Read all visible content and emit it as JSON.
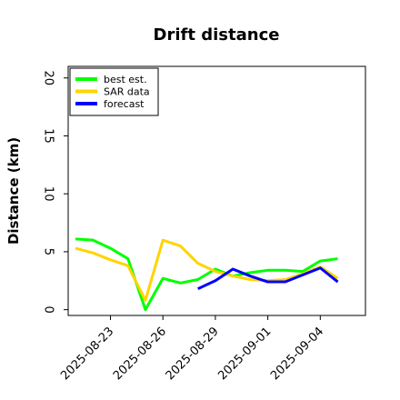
{
  "chart_data": {
    "type": "line",
    "title": "Drift distance",
    "ylabel": "Distance (km)",
    "xlabel": "",
    "xlim": [
      "2025-08-20T14:00",
      "2025-09-06T14:00"
    ],
    "ylim": [
      -0.5,
      21
    ],
    "yticks": [
      0,
      5,
      10,
      15,
      20
    ],
    "xticks": [
      "2025-08-23",
      "2025-08-26",
      "2025-08-29",
      "2025-09-01",
      "2025-09-04"
    ],
    "grid": false,
    "legend_position": "top-left",
    "series": [
      {
        "name": "best est.",
        "color": "#00ff00",
        "x": [
          "2025-08-21",
          "2025-08-22",
          "2025-08-23",
          "2025-08-24",
          "2025-08-25",
          "2025-08-26",
          "2025-08-27",
          "2025-08-28",
          "2025-08-29",
          "2025-08-30",
          "2025-08-31",
          "2025-09-01",
          "2025-09-02",
          "2025-09-03",
          "2025-09-04",
          "2025-09-05"
        ],
        "values": [
          6.1,
          6.0,
          5.3,
          4.4,
          0.0,
          2.7,
          2.3,
          2.6,
          3.5,
          2.9,
          3.2,
          3.4,
          3.4,
          3.3,
          4.2,
          4.4
        ]
      },
      {
        "name": "SAR data",
        "color": "#ffd400",
        "x": [
          "2025-08-21",
          "2025-08-22",
          "2025-08-23",
          "2025-08-24",
          "2025-08-25",
          "2025-08-26",
          "2025-08-27",
          "2025-08-28",
          "2025-08-29",
          "2025-08-30",
          "2025-08-31",
          "2025-09-01",
          "2025-09-02",
          "2025-09-03",
          "2025-09-04",
          "2025-09-05"
        ],
        "values": [
          5.3,
          4.9,
          4.3,
          3.8,
          0.8,
          6.0,
          5.5,
          4.0,
          3.3,
          2.9,
          2.6,
          2.5,
          2.6,
          3.1,
          3.7,
          2.7
        ]
      },
      {
        "name": "forecast",
        "color": "#0000ff",
        "x": [
          "2025-08-28",
          "2025-08-29",
          "2025-08-30",
          "2025-08-31",
          "2025-09-01",
          "2025-09-02",
          "2025-09-03",
          "2025-09-04",
          "2025-09-05"
        ],
        "values": [
          1.8,
          2.5,
          3.5,
          2.9,
          2.4,
          2.4,
          3.0,
          3.6,
          2.4
        ]
      }
    ]
  }
}
